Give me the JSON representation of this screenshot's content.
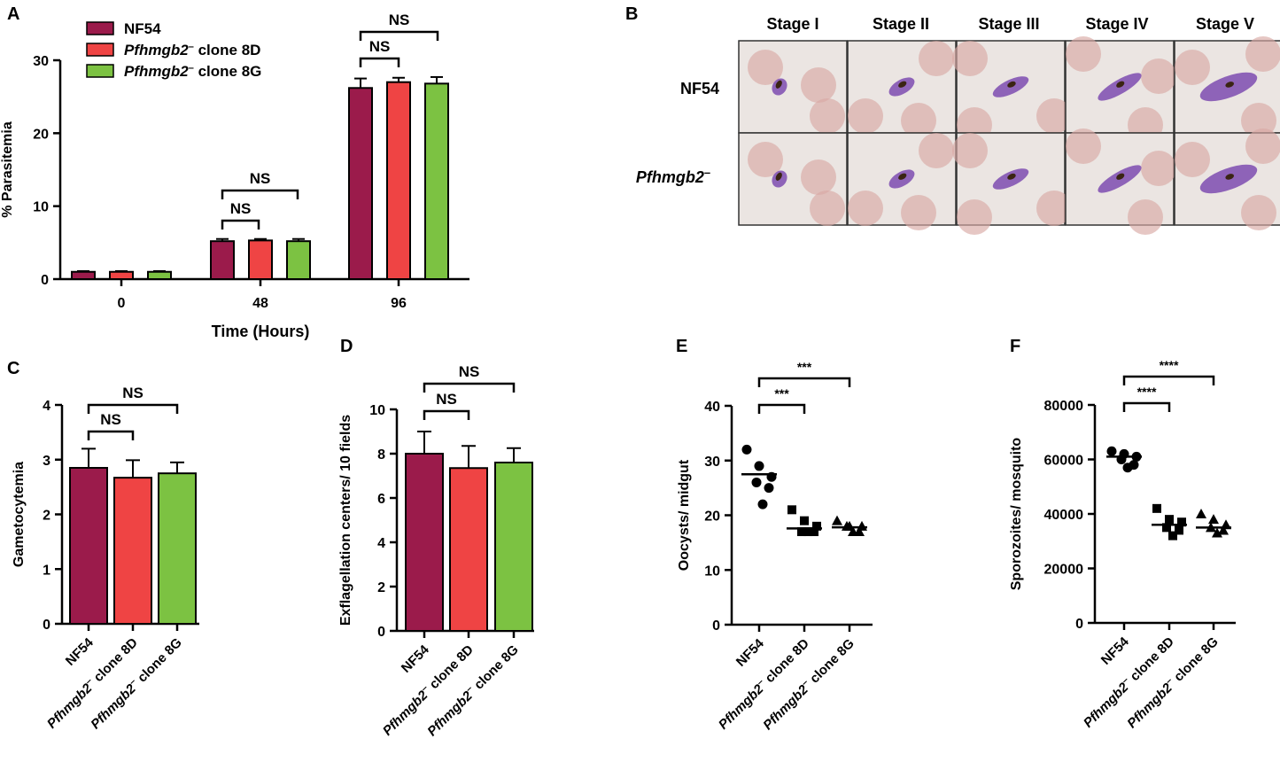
{
  "colors": {
    "nf54": "#9b1b4b",
    "clone8d": "#ef4444",
    "clone8g": "#7cc242",
    "axis": "#000000",
    "cell_bg": "#ebe5e2",
    "rbc": "#d8a9a4",
    "parasite": "#8e63b8"
  },
  "strain_names": {
    "nf54": "NF54",
    "ko_prefix": "Pfhmgb2",
    "ko_sup": "–",
    "c8d_suffix": " clone 8D",
    "c8g_suffix": " clone 8G"
  },
  "panels": {
    "A": "A",
    "B": "B",
    "C": "C",
    "D": "D",
    "E": "E",
    "F": "F"
  },
  "images": {
    "stages": [
      "Stage I",
      "Stage II",
      "Stage III",
      "Stage IV",
      "Stage V"
    ],
    "row_nf54": "NF54",
    "row_ko": "Pfhmgb2",
    "row_ko_sup": "–"
  },
  "chart_data": [
    {
      "id": "A",
      "type": "bar",
      "categories": [
        "0",
        "48",
        "96"
      ],
      "series": [
        {
          "name": "NF54",
          "values": [
            1,
            5.2,
            26.2
          ],
          "errors": [
            0.1,
            0.3,
            1.3
          ]
        },
        {
          "name": "Pfhmgb2– clone 8D",
          "values": [
            1,
            5.3,
            27.0
          ],
          "errors": [
            0.1,
            0.2,
            0.6
          ]
        },
        {
          "name": "Pfhmgb2– clone 8G",
          "values": [
            1,
            5.2,
            26.8
          ],
          "errors": [
            0.1,
            0.3,
            0.9
          ]
        }
      ],
      "xlabel": "Time (Hours)",
      "ylabel": "% Parasitemia",
      "ylim": [
        0,
        30
      ],
      "yticks": [
        "0",
        "10",
        "20",
        "30"
      ],
      "significance": [
        {
          "label": "NS",
          "group": 1,
          "from": 0,
          "to": 1
        },
        {
          "label": "NS",
          "group": 1,
          "from": 0,
          "to": 2
        },
        {
          "label": "NS",
          "group": 2,
          "from": 0,
          "to": 1
        },
        {
          "label": "NS",
          "group": 2,
          "from": 0,
          "to": 2
        }
      ],
      "legend": "top-left"
    },
    {
      "id": "C",
      "type": "bar",
      "categories": [
        "NF54",
        "Pfhmgb2– clone 8D",
        "Pfhmgb2– clone 8G"
      ],
      "values": [
        2.85,
        2.67,
        2.75
      ],
      "errors": [
        0.35,
        0.32,
        0.2
      ],
      "ylabel": "Gametocytemia",
      "ylim": [
        0,
        4
      ],
      "yticks": [
        "0",
        "1",
        "2",
        "3",
        "4"
      ],
      "significance": [
        {
          "label": "NS",
          "from": 0,
          "to": 1
        },
        {
          "label": "NS",
          "from": 0,
          "to": 2
        }
      ]
    },
    {
      "id": "D",
      "type": "bar",
      "categories": [
        "NF54",
        "Pfhmgb2– clone 8D",
        "Pfhmgb2– clone 8G"
      ],
      "values": [
        8.0,
        7.35,
        7.6
      ],
      "errors": [
        1.0,
        1.0,
        0.65
      ],
      "ylabel": "Exflagellation centers/ 10 fields",
      "ylim": [
        0,
        10
      ],
      "yticks": [
        "0",
        "2",
        "4",
        "6",
        "8",
        "10"
      ],
      "significance": [
        {
          "label": "NS",
          "from": 0,
          "to": 1
        },
        {
          "label": "NS",
          "from": 0,
          "to": 2
        }
      ]
    },
    {
      "id": "E",
      "type": "scatter",
      "categories": [
        "NF54",
        "Pfhmgb2– clone 8D",
        "Pfhmgb2– clone 8G"
      ],
      "points": [
        [
          32,
          29,
          27,
          26,
          25,
          22
        ],
        [
          21,
          19,
          18,
          17,
          17,
          17
        ],
        [
          19,
          18,
          18,
          18,
          17,
          17
        ]
      ],
      "medians": [
        27.5,
        17.6,
        17.8
      ],
      "ylabel": "Oocysts/ midgut",
      "ylim": [
        0,
        40
      ],
      "yticks": [
        "0",
        "10",
        "20",
        "30",
        "40"
      ],
      "significance": [
        {
          "label": "***",
          "from": 0,
          "to": 1
        },
        {
          "label": "***",
          "from": 0,
          "to": 2
        }
      ]
    },
    {
      "id": "F",
      "type": "scatter",
      "categories": [
        "NF54",
        "Pfhmgb2– clone 8D",
        "Pfhmgb2– clone 8G"
      ],
      "points": [
        [
          63000,
          62000,
          61000,
          60000,
          58000,
          57000
        ],
        [
          42000,
          38000,
          37000,
          35000,
          34000,
          32000
        ],
        [
          40000,
          38000,
          36000,
          35000,
          34000,
          33000
        ]
      ],
      "medians": [
        61000,
        36000,
        35000
      ],
      "ylabel": "Sporozoites/ mosquito",
      "ylim": [
        0,
        80000
      ],
      "yticks": [
        "0",
        "20000",
        "40000",
        "60000",
        "80000"
      ],
      "significance": [
        {
          "label": "****",
          "from": 0,
          "to": 1
        },
        {
          "label": "****",
          "from": 0,
          "to": 2
        }
      ]
    }
  ]
}
